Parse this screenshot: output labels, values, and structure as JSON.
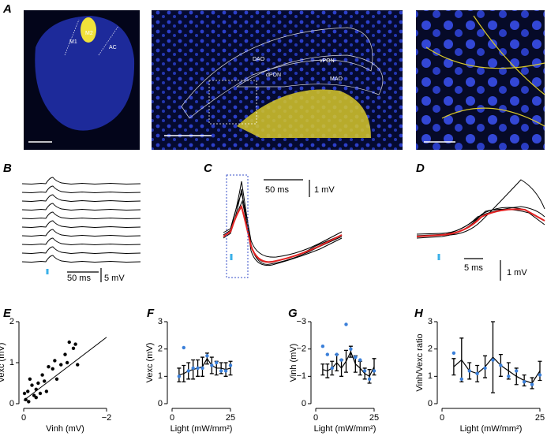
{
  "panel_labels": [
    "A",
    "B",
    "C",
    "D",
    "E",
    "F",
    "G",
    "H"
  ],
  "image_labels": [
    "M1",
    "M2",
    "AC",
    "DAO",
    "dPON",
    "vPON",
    "MAO"
  ],
  "scale_bar_labels": [
    "50 ms",
    "5 mV",
    "50 ms",
    "1 mV",
    "5 ms",
    "1 mV"
  ],
  "chart_data": [
    {
      "type": "scatter",
      "xlabel": "Vinh (mV)",
      "ylabel": "Vexc (mV)",
      "x": [
        -0.02,
        -0.05,
        -0.1,
        -0.12,
        -0.15,
        -0.2,
        -0.25,
        -0.3,
        -0.3,
        -0.35,
        -0.4,
        -0.45,
        -0.5,
        -0.55,
        -0.6,
        -0.7,
        -0.75,
        -0.8,
        -0.9,
        -1.0,
        -1.05,
        -1.1,
        -1.2,
        -1.25,
        -1.3
      ],
      "values": [
        0.25,
        0.1,
        0.3,
        0.05,
        0.6,
        0.45,
        0.2,
        0.35,
        0.15,
        0.5,
        0.25,
        0.7,
        0.55,
        0.3,
        0.9,
        0.85,
        1.05,
        0.6,
        0.95,
        1.2,
        1.0,
        1.5,
        1.35,
        1.45,
        0.95
      ],
      "color": "#000000",
      "trendline": {
        "x": [
          0,
          -2
        ],
        "values": [
          0.08,
          1.62
        ]
      },
      "xlim": [
        0,
        -2
      ],
      "xticks": [
        0,
        {
          "value": -2,
          "label": "−2"
        }
      ],
      "ylim": [
        0,
        2
      ],
      "yticks": [
        0,
        1,
        2
      ]
    },
    {
      "type": "line",
      "xlabel": "Light (mW/mm²)",
      "ylabel": "Vexc (mV)",
      "x": [
        3,
        5,
        7,
        9,
        11,
        13,
        15,
        17,
        19,
        21,
        23,
        25
      ],
      "series": [
        {
          "color": "#000000",
          "values": [
            1.05,
            1.1,
            1.2,
            1.25,
            1.3,
            1.35,
            1.65,
            1.4,
            1.3,
            1.3,
            1.25,
            1.3
          ],
          "errors": [
            0.25,
            0.3,
            0.3,
            0.35,
            0.3,
            0.35,
            0.2,
            0.3,
            0.25,
            0.2,
            0.25,
            0.25
          ]
        },
        {
          "color": "#3a7fd9",
          "values": [
            1.0,
            2.05,
            1.2,
            1.3,
            1.3,
            1.3,
            1.75,
            1.4,
            1.5,
            1.2,
            1.2,
            1.4
          ]
        }
      ],
      "xlim": [
        0,
        25
      ],
      "xticks": [
        0,
        25
      ],
      "ylim": [
        0,
        3
      ],
      "yticks": [
        0,
        1,
        2,
        3
      ]
    },
    {
      "type": "line",
      "xlabel": "Light (mW/mm²)",
      "ylabel": "Vinh (mV)",
      "x": [
        3,
        5,
        7,
        9,
        11,
        13,
        15,
        17,
        19,
        21,
        23,
        25
      ],
      "series": [
        {
          "color": "#000000",
          "values": [
            -1.25,
            -1.2,
            -1.3,
            -1.5,
            -1.3,
            -1.55,
            -1.9,
            -1.45,
            -1.3,
            -1.1,
            -1.0,
            -1.35
          ],
          "errors": [
            0.2,
            0.25,
            0.25,
            0.3,
            0.3,
            0.4,
            0.2,
            0.3,
            0.25,
            0.2,
            0.25,
            0.3
          ]
        },
        {
          "color": "#3a7fd9",
          "values": [
            -2.1,
            -1.8,
            -1.3,
            -1.8,
            -1.6,
            -2.9,
            -2.0,
            -1.7,
            -1.6,
            -1.2,
            -0.9,
            -1.2
          ]
        }
      ],
      "xlim": [
        0,
        25
      ],
      "xticks": [
        0,
        25
      ],
      "ylim": [
        0,
        -3
      ],
      "yticks": [
        0,
        {
          "value": -1,
          "label": "−1"
        },
        {
          "value": -2,
          "label": "−2"
        },
        {
          "value": -3,
          "label": "−3"
        }
      ]
    },
    {
      "type": "line",
      "xlabel": "Light (mW/mm²)",
      "ylabel": "Vinh/Vexc ratio",
      "x": [
        3,
        5,
        7,
        9,
        11,
        13,
        15,
        17,
        19,
        21,
        23,
        25
      ],
      "series": [
        {
          "color": "#000000",
          "values": [
            1.35,
            1.6,
            1.2,
            1.1,
            1.35,
            1.7,
            1.4,
            1.2,
            1.0,
            0.85,
            0.75,
            1.2
          ],
          "errors": [
            0.3,
            0.8,
            0.3,
            0.3,
            0.4,
            1.3,
            0.4,
            0.3,
            0.3,
            0.2,
            0.2,
            0.35
          ]
        },
        {
          "color": "#3a7fd9",
          "values": [
            1.85,
            0.9,
            1.2,
            1.1,
            1.3,
            1.6,
            1.4,
            1.0,
            1.2,
            0.8,
            0.7,
            1.05
          ]
        }
      ],
      "xlim": [
        0,
        25
      ],
      "xticks": [
        0,
        25
      ],
      "ylim": [
        0,
        3
      ],
      "yticks": [
        0,
        1,
        2,
        3
      ]
    }
  ]
}
